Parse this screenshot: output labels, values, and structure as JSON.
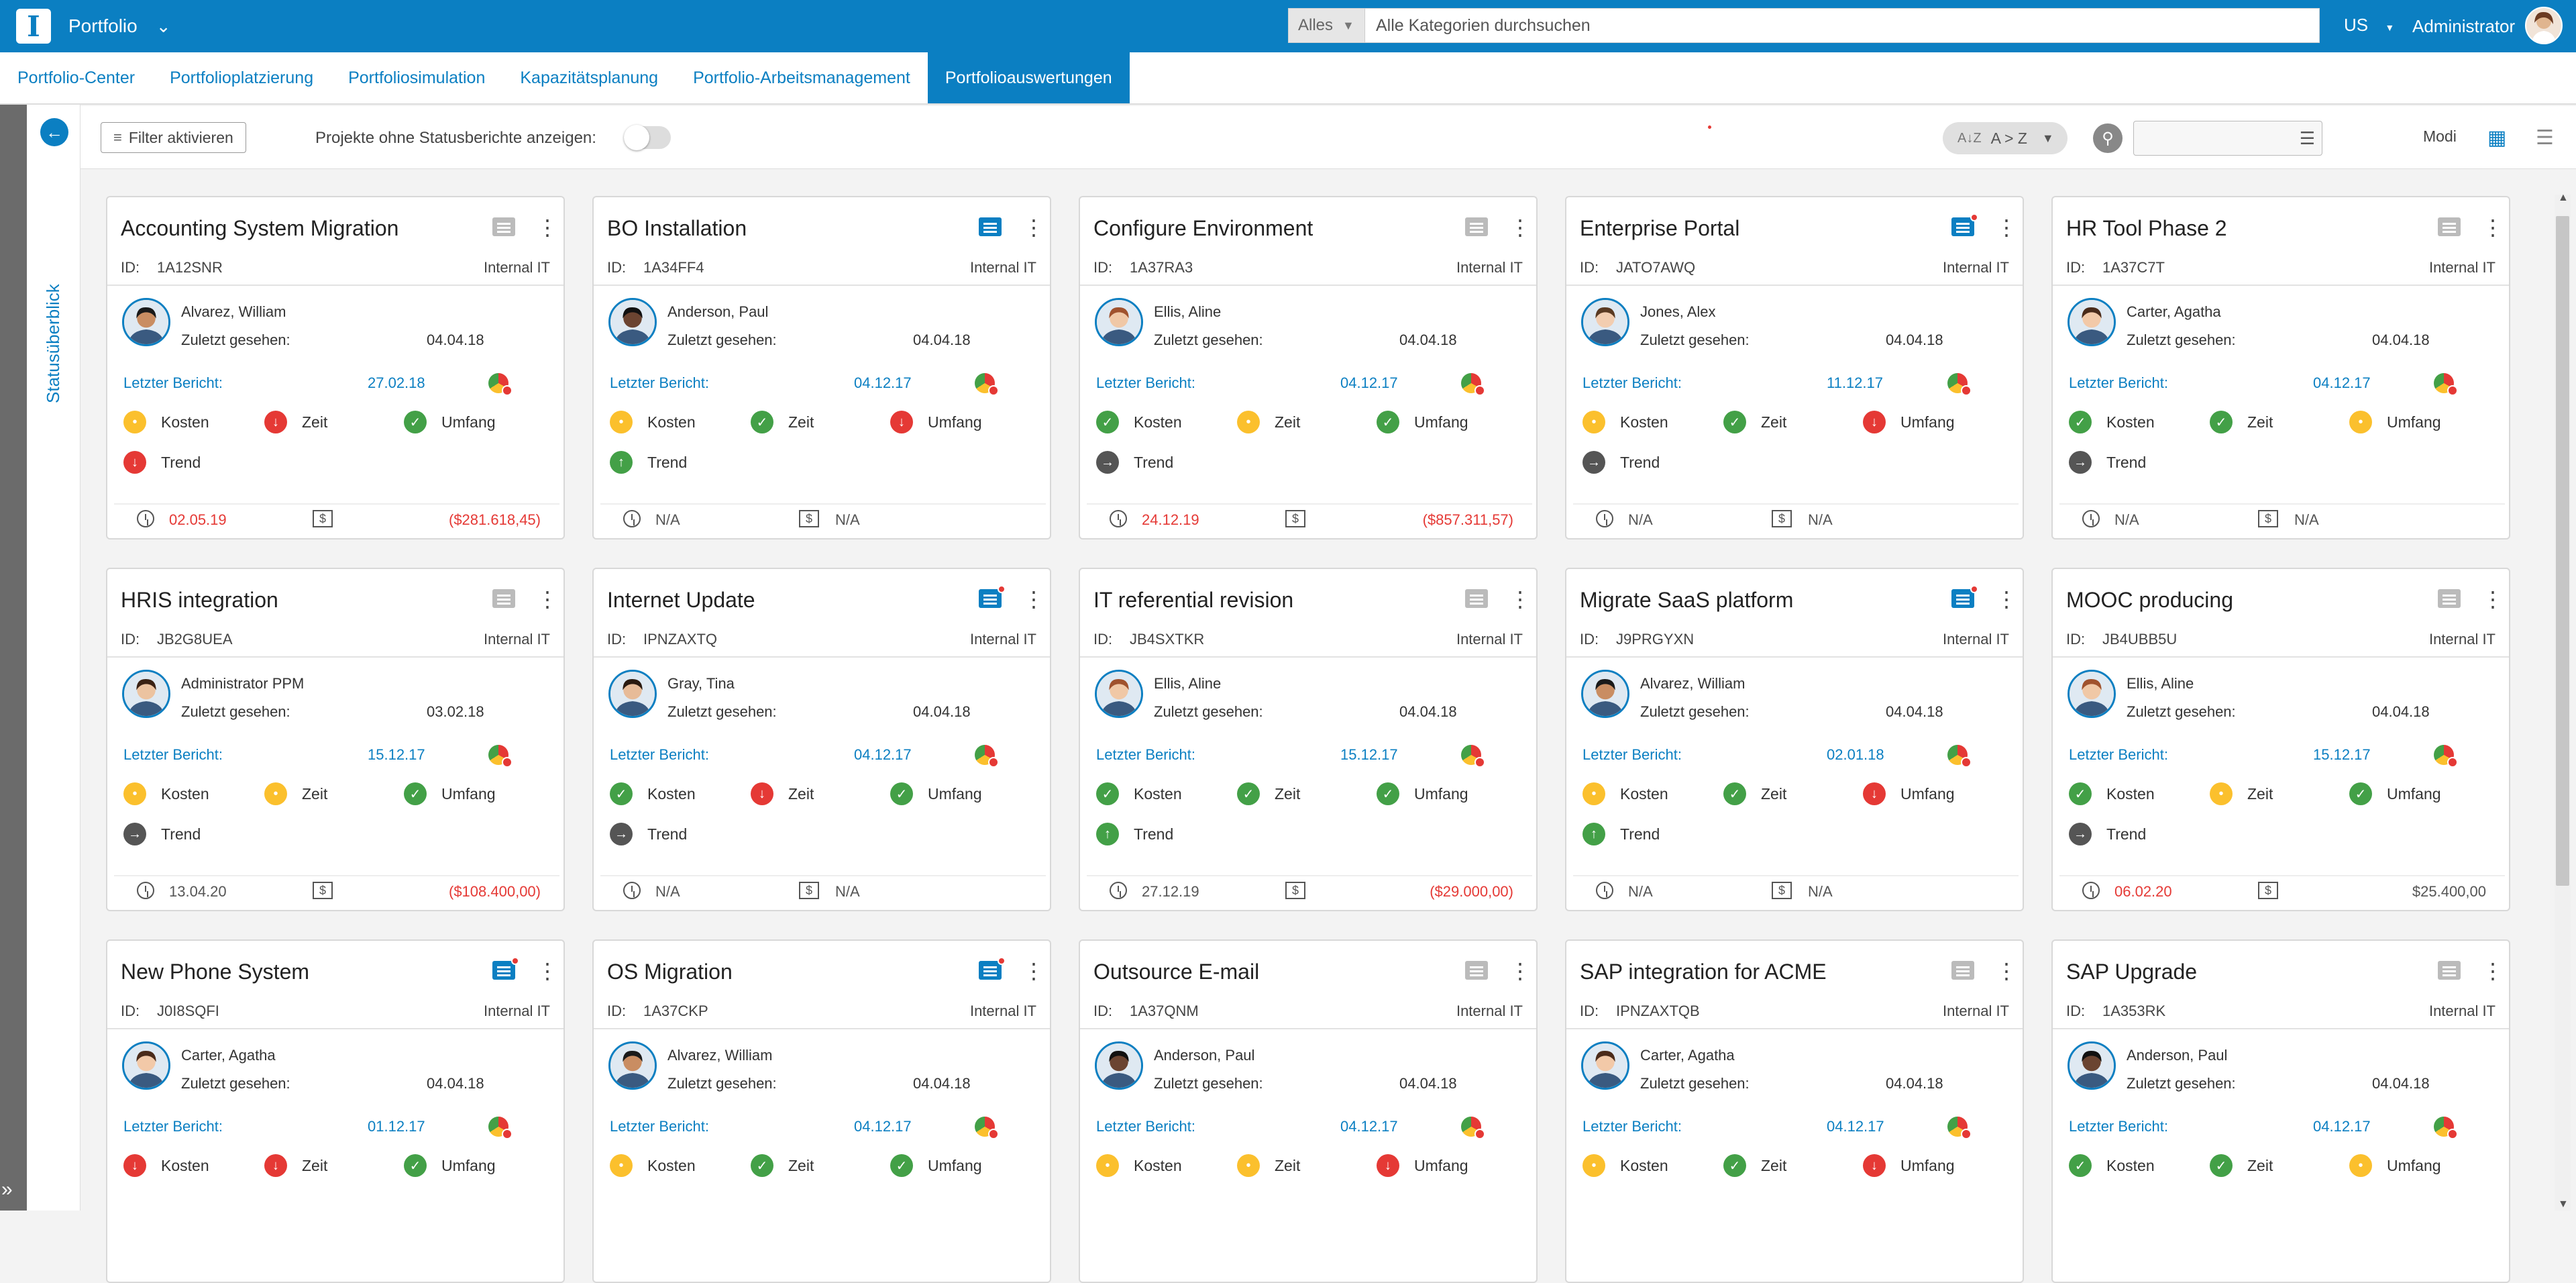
{
  "app": {
    "title": "Portfolio",
    "logo_letter": "I"
  },
  "search": {
    "category": "Alles",
    "placeholder": "Alle Kategorien durchsuchen"
  },
  "locale": "US",
  "user": {
    "name": "Administrator"
  },
  "nav": {
    "tabs": [
      "Portfolio-Center",
      "Portfolioplatzierung",
      "Portfoliosimulation",
      "Kapazitätsplanung",
      "Portfolio-Arbeitsmanagement",
      "Portfolioauswertungen"
    ],
    "active": 5
  },
  "side": {
    "title": "Statusüberblick"
  },
  "toolbar": {
    "filter_label": "Filter aktivieren",
    "projects_label": "Projekte ohne Statusberichte anzeigen:",
    "sort_label": "A > Z",
    "modi_label": "Modi"
  },
  "labels": {
    "id": "ID:",
    "seen": "Zuletzt gesehen:",
    "report": "Letzter Bericht:",
    "cost": "Kosten",
    "time": "Zeit",
    "scope": "Umfang",
    "trend": "Trend"
  },
  "colors": {
    "accent": "#0b7fc2",
    "green": "#43a047",
    "yellow": "#fbc02d",
    "red": "#e53935",
    "gray": "#555555"
  },
  "cards": [
    {
      "name": "Accounting System Migration",
      "id": "1A12SNR",
      "dept": "Internal IT",
      "person": "Alvarez, William",
      "seen": "04.04.18",
      "report": "27.02.18",
      "info_active": false,
      "info_dot": false,
      "cost": "yellow",
      "time": "red",
      "scope": "green",
      "trend": "down-red",
      "date": "02.05.19",
      "date_red": true,
      "budget": "($281.618,45)",
      "budget_red": true
    },
    {
      "name": "BO Installation",
      "id": "1A34FF4",
      "dept": "Internal IT",
      "person": "Anderson, Paul",
      "seen": "04.04.18",
      "report": "04.12.17",
      "info_active": true,
      "info_dot": false,
      "cost": "yellow",
      "time": "green",
      "scope": "red",
      "trend": "up-green",
      "date": "N/A",
      "date_red": false,
      "budget": "N/A",
      "budget_red": false
    },
    {
      "name": "Configure Environment",
      "id": "1A37RA3",
      "dept": "Internal IT",
      "person": "Ellis, Aline",
      "seen": "04.04.18",
      "report": "04.12.17",
      "info_active": false,
      "info_dot": false,
      "cost": "green",
      "time": "yellow",
      "scope": "green",
      "trend": "right-gray",
      "date": "24.12.19",
      "date_red": true,
      "budget": "($857.311,57)",
      "budget_red": true
    },
    {
      "name": "Enterprise Portal",
      "id": "JATO7AWQ",
      "dept": "Internal IT",
      "person": "Jones, Alex",
      "seen": "04.04.18",
      "report": "11.12.17",
      "info_active": true,
      "info_dot": true,
      "cost": "yellow",
      "time": "green",
      "scope": "red",
      "trend": "right-gray",
      "date": "N/A",
      "date_red": false,
      "budget": "N/A",
      "budget_red": false
    },
    {
      "name": "HR Tool Phase 2",
      "id": "1A37C7T",
      "dept": "Internal IT",
      "person": "Carter, Agatha",
      "seen": "04.04.18",
      "report": "04.12.17",
      "info_active": false,
      "info_dot": false,
      "cost": "green",
      "time": "green",
      "scope": "yellow",
      "trend": "right-gray",
      "date": "N/A",
      "date_red": false,
      "budget": "N/A",
      "budget_red": false
    },
    {
      "name": "HRIS integration",
      "id": "JB2G8UEA",
      "dept": "Internal IT",
      "person": "Administrator PPM",
      "seen": "03.02.18",
      "report": "15.12.17",
      "info_active": false,
      "info_dot": false,
      "cost": "yellow",
      "time": "yellow",
      "scope": "green",
      "trend": "right-gray",
      "date": "13.04.20",
      "date_red": false,
      "budget": "($108.400,00)",
      "budget_red": true
    },
    {
      "name": "Internet Update",
      "id": "IPNZAXTQ",
      "dept": "Internal IT",
      "person": "Gray, Tina",
      "seen": "04.04.18",
      "report": "04.12.17",
      "info_active": true,
      "info_dot": true,
      "cost": "green",
      "time": "red",
      "scope": "green",
      "trend": "right-gray",
      "date": "N/A",
      "date_red": false,
      "budget": "N/A",
      "budget_red": false
    },
    {
      "name": "IT referential revision",
      "id": "JB4SXTKR",
      "dept": "Internal IT",
      "person": "Ellis, Aline",
      "seen": "04.04.18",
      "report": "15.12.17",
      "info_active": false,
      "info_dot": false,
      "cost": "green",
      "time": "green",
      "scope": "green",
      "trend": "up-green",
      "date": "27.12.19",
      "date_red": false,
      "budget": "($29.000,00)",
      "budget_red": true
    },
    {
      "name": "Migrate SaaS platform",
      "id": "J9PRGYXN",
      "dept": "Internal IT",
      "person": "Alvarez, William",
      "seen": "04.04.18",
      "report": "02.01.18",
      "info_active": true,
      "info_dot": true,
      "cost": "yellow",
      "time": "green",
      "scope": "red",
      "trend": "up-green",
      "date": "N/A",
      "date_red": false,
      "budget": "N/A",
      "budget_red": false
    },
    {
      "name": "MOOC producing",
      "id": "JB4UBB5U",
      "dept": "Internal IT",
      "person": "Ellis, Aline",
      "seen": "04.04.18",
      "report": "15.12.17",
      "info_active": false,
      "info_dot": false,
      "cost": "green",
      "time": "yellow",
      "scope": "green",
      "trend": "right-gray",
      "date": "06.02.20",
      "date_red": true,
      "budget": "$25.400,00",
      "budget_red": false
    },
    {
      "name": "New Phone System",
      "id": "J0I8SQFI",
      "dept": "Internal IT",
      "person": "Carter, Agatha",
      "seen": "04.04.18",
      "report": "01.12.17",
      "info_active": true,
      "info_dot": true,
      "cost": "red",
      "time": "red",
      "scope": "green",
      "trend": "",
      "date": "",
      "date_red": false,
      "budget": "",
      "budget_red": false
    },
    {
      "name": "OS Migration",
      "id": "1A37CKP",
      "dept": "Internal IT",
      "person": "Alvarez, William",
      "seen": "04.04.18",
      "report": "04.12.17",
      "info_active": true,
      "info_dot": true,
      "cost": "yellow",
      "time": "green",
      "scope": "green",
      "trend": "",
      "date": "",
      "date_red": false,
      "budget": "",
      "budget_red": false
    },
    {
      "name": "Outsource E-mail",
      "id": "1A37QNM",
      "dept": "Internal IT",
      "person": "Anderson, Paul",
      "seen": "04.04.18",
      "report": "04.12.17",
      "info_active": false,
      "info_dot": false,
      "cost": "yellow",
      "time": "yellow",
      "scope": "red",
      "trend": "",
      "date": "",
      "date_red": false,
      "budget": "",
      "budget_red": false
    },
    {
      "name": "SAP integration for ACME",
      "id": "IPNZAXTQB",
      "dept": "Internal IT",
      "person": "Carter, Agatha",
      "seen": "04.04.18",
      "report": "04.12.17",
      "info_active": false,
      "info_dot": false,
      "cost": "yellow",
      "time": "green",
      "scope": "red",
      "trend": "",
      "date": "",
      "date_red": false,
      "budget": "",
      "budget_red": false
    },
    {
      "name": "SAP Upgrade",
      "id": "1A353RK",
      "dept": "Internal IT",
      "person": "Anderson, Paul",
      "seen": "04.04.18",
      "report": "04.12.17",
      "info_active": false,
      "info_dot": false,
      "cost": "green",
      "time": "green",
      "scope": "yellow",
      "trend": "",
      "date": "",
      "date_red": false,
      "budget": "",
      "budget_red": false
    }
  ]
}
